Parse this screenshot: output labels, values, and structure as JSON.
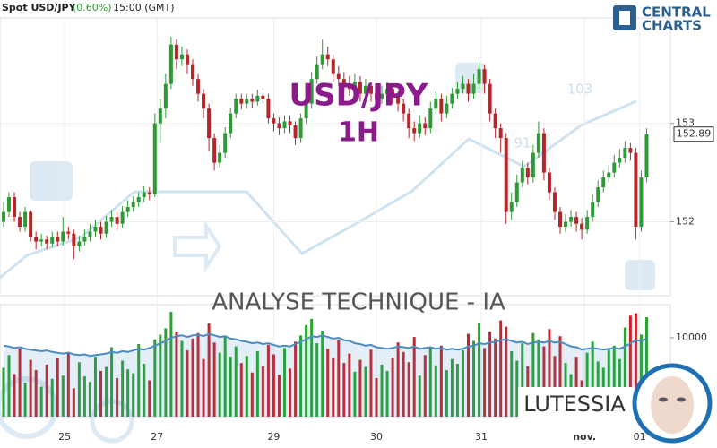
{
  "page": {
    "title": "Spot USD/JPY",
    "change": "(0.60%)",
    "time": "15:00 (GMT)",
    "logo_top": "CENTRAL",
    "logo_bottom": "CHARTS",
    "overlay_symbol": "USD/JPY",
    "overlay_timeframe": "1H",
    "banner": "ANALYSE TECHNIQUE - IA",
    "brand": "LUTESSIA",
    "watermark_a": "103",
    "watermark_b": "91"
  },
  "chart_data": [
    {
      "type": "candlestick",
      "up_color": "#2e9a36",
      "down_color": "#b5262a",
      "grid": true,
      "xlim": [
        -0.66,
        123.4
      ],
      "ylim": [
        151.25,
        154.07
      ],
      "yticks": [
        152,
        153
      ],
      "xticks": [
        {
          "value": 11.3,
          "label": "25"
        },
        {
          "value": 28.4,
          "label": "27"
        },
        {
          "value": 50.0,
          "label": "29"
        },
        {
          "value": 69.0,
          "label": "30"
        },
        {
          "value": 88.4,
          "label": "31"
        },
        {
          "value": 107.5,
          "label": "nov."
        },
        {
          "value": 117.7,
          "label": "01"
        }
      ],
      "open": [
        152.0,
        152.1,
        152.25,
        152.05,
        151.95,
        152.1,
        151.85,
        151.8,
        151.82,
        151.78,
        151.85,
        151.8,
        151.9,
        151.88,
        151.75,
        151.8,
        151.85,
        151.9,
        151.95,
        151.88,
        152.0,
        152.05,
        151.98,
        152.1,
        152.15,
        152.2,
        152.25,
        152.3,
        152.28,
        153.0,
        153.15,
        153.4,
        153.8,
        153.65,
        153.7,
        153.6,
        153.45,
        153.3,
        153.15,
        152.85,
        152.6,
        152.7,
        152.9,
        153.1,
        153.25,
        153.2,
        153.25,
        153.22,
        153.28,
        153.25,
        153.05,
        153.0,
        152.95,
        153.02,
        152.98,
        152.85,
        153.05,
        153.2,
        153.45,
        153.6,
        153.7,
        153.65,
        153.5,
        153.45,
        153.4,
        153.35,
        153.42,
        153.3,
        153.38,
        153.3,
        153.25,
        153.3,
        153.35,
        153.28,
        153.2,
        153.1,
        152.95,
        152.9,
        153.0,
        152.95,
        153.15,
        153.25,
        153.1,
        153.2,
        153.3,
        153.35,
        153.4,
        153.3,
        153.4,
        153.55,
        153.4,
        153.1,
        152.95,
        152.85,
        152.1,
        152.2,
        152.4,
        152.55,
        152.45,
        152.7,
        152.9,
        152.5,
        152.3,
        152.1,
        151.95,
        152.0,
        152.05,
        151.98,
        151.92,
        152.05,
        152.2,
        152.35,
        152.45,
        152.5,
        152.6,
        152.65,
        152.75,
        152.7,
        151.95,
        152.45
      ],
      "high": [
        152.2,
        152.3,
        152.3,
        152.1,
        152.15,
        152.12,
        151.9,
        151.88,
        151.86,
        151.9,
        151.9,
        152.05,
        151.95,
        151.92,
        151.86,
        151.92,
        151.98,
        152.02,
        152.0,
        152.06,
        152.12,
        152.1,
        152.16,
        152.22,
        152.26,
        152.3,
        152.36,
        152.35,
        153.1,
        153.25,
        153.5,
        153.88,
        153.85,
        153.78,
        153.75,
        153.65,
        153.5,
        153.35,
        153.2,
        152.9,
        152.78,
        152.96,
        153.16,
        153.3,
        153.3,
        153.3,
        153.3,
        153.34,
        153.32,
        153.3,
        153.1,
        153.06,
        153.08,
        153.08,
        153.02,
        153.1,
        153.28,
        153.52,
        153.68,
        153.85,
        153.78,
        153.7,
        153.58,
        153.52,
        153.48,
        153.5,
        153.48,
        153.45,
        153.42,
        153.36,
        153.38,
        153.42,
        153.4,
        153.32,
        153.25,
        153.15,
        153.02,
        153.08,
        153.06,
        153.22,
        153.32,
        153.3,
        153.28,
        153.36,
        153.42,
        153.48,
        153.45,
        153.5,
        153.62,
        153.6,
        153.45,
        153.15,
        153.0,
        152.9,
        152.3,
        152.48,
        152.62,
        152.6,
        152.78,
        153.02,
        152.95,
        152.55,
        152.35,
        152.15,
        152.08,
        152.12,
        152.1,
        152.04,
        152.12,
        152.28,
        152.42,
        152.52,
        152.58,
        152.68,
        152.74,
        152.82,
        152.8,
        152.75,
        152.52,
        152.95
      ],
      "low": [
        151.95,
        152.05,
        152.0,
        151.9,
        151.9,
        151.8,
        151.72,
        151.75,
        151.72,
        151.74,
        151.75,
        151.76,
        151.82,
        151.62,
        151.7,
        151.76,
        151.8,
        151.85,
        151.82,
        151.84,
        151.95,
        151.92,
        151.94,
        152.05,
        152.1,
        152.15,
        152.2,
        152.22,
        152.25,
        152.8,
        153.05,
        153.35,
        153.55,
        153.58,
        153.5,
        153.38,
        153.22,
        153.05,
        152.72,
        152.52,
        152.55,
        152.65,
        152.85,
        153.05,
        153.14,
        153.15,
        153.16,
        153.18,
        153.2,
        153.0,
        152.92,
        152.88,
        152.9,
        152.9,
        152.78,
        152.8,
        153.0,
        153.15,
        153.4,
        153.55,
        153.58,
        153.42,
        153.38,
        153.32,
        153.28,
        153.3,
        153.22,
        153.25,
        153.22,
        153.18,
        153.2,
        153.25,
        153.2,
        153.12,
        153.02,
        152.85,
        152.82,
        152.85,
        152.88,
        152.9,
        153.1,
        153.02,
        153.05,
        153.15,
        153.25,
        153.3,
        153.22,
        153.25,
        153.35,
        153.3,
        153.02,
        152.85,
        152.7,
        151.98,
        152.02,
        152.15,
        152.35,
        152.38,
        152.4,
        152.65,
        152.42,
        152.22,
        152.02,
        151.88,
        151.9,
        151.95,
        151.9,
        151.82,
        151.88,
        152.0,
        152.15,
        152.3,
        152.4,
        152.45,
        152.55,
        152.6,
        152.62,
        151.82,
        151.9,
        152.4
      ],
      "close": [
        152.1,
        152.25,
        152.05,
        151.95,
        152.1,
        151.85,
        151.8,
        151.82,
        151.78,
        151.85,
        151.8,
        151.9,
        151.88,
        151.75,
        151.8,
        151.85,
        151.9,
        151.95,
        151.88,
        152.0,
        152.05,
        151.98,
        152.1,
        152.15,
        152.2,
        152.25,
        152.3,
        152.28,
        153.0,
        153.15,
        153.4,
        153.8,
        153.65,
        153.7,
        153.6,
        153.45,
        153.3,
        153.15,
        152.85,
        152.6,
        152.7,
        152.9,
        153.1,
        153.25,
        153.2,
        153.25,
        153.22,
        153.28,
        153.25,
        153.05,
        153.0,
        152.95,
        153.02,
        152.98,
        152.85,
        153.05,
        153.2,
        153.45,
        153.6,
        153.7,
        153.65,
        153.5,
        153.45,
        153.4,
        153.35,
        153.42,
        153.3,
        153.38,
        153.3,
        153.25,
        153.3,
        153.35,
        153.28,
        153.2,
        153.1,
        152.95,
        152.9,
        153.0,
        152.95,
        153.15,
        153.25,
        153.1,
        153.2,
        153.3,
        153.35,
        153.4,
        153.3,
        153.4,
        153.55,
        153.4,
        153.1,
        152.95,
        152.85,
        152.1,
        152.2,
        152.4,
        152.55,
        152.45,
        152.7,
        152.9,
        152.5,
        152.3,
        152.1,
        151.95,
        152.0,
        152.05,
        151.98,
        151.92,
        152.05,
        152.2,
        152.35,
        152.45,
        152.5,
        152.6,
        152.65,
        152.75,
        152.7,
        151.95,
        152.45,
        152.89
      ]
    },
    {
      "type": "bar",
      "up_color": "#27a52d",
      "down_color": "#c8232a",
      "ylim": [
        0,
        14200
      ],
      "yticks": [
        10000
      ],
      "values": [
        6200,
        7800,
        5400,
        8600,
        4300,
        7200,
        5900,
        3800,
        6600,
        4800,
        7400,
        5200,
        8200,
        3600,
        6900,
        5100,
        4400,
        7600,
        5800,
        6300,
        8800,
        4900,
        7100,
        6000,
        5500,
        9200,
        6700,
        4600,
        9800,
        10400,
        11200,
        13300,
        10800,
        9600,
        8400,
        9900,
        10600,
        7300,
        11800,
        9400,
        8100,
        10200,
        7600,
        8900,
        6800,
        7700,
        5600,
        8300,
        6400,
        9100,
        7900,
        5300,
        8700,
        6100,
        9500,
        10300,
        11600,
        12400,
        9300,
        10900,
        8600,
        7400,
        9700,
        6800,
        8000,
        5700,
        7200,
        6300,
        8500,
        4900,
        6600,
        5800,
        7500,
        9400,
        8200,
        6900,
        10100,
        5200,
        7800,
        8800,
        6500,
        9000,
        5900,
        7300,
        6700,
        8400,
        10500,
        9600,
        11900,
        8700,
        10800,
        9900,
        12200,
        11400,
        8300,
        7100,
        9300,
        6400,
        10600,
        9800,
        8900,
        11100,
        7700,
        10200,
        6800,
        5400,
        7600,
        4600,
        8100,
        9500,
        7000,
        6200,
        8600,
        9000,
        7300,
        11300,
        12800,
        13100,
        10400,
        12600
      ],
      "line": {
        "color": "#4a8cc4",
        "values": [
          9000,
          8900,
          8700,
          8800,
          8600,
          8500,
          8400,
          8300,
          8400,
          8200,
          8100,
          8000,
          8100,
          7900,
          7800,
          7900,
          7700,
          7800,
          7900,
          8000,
          8200,
          8100,
          8300,
          8200,
          8400,
          8600,
          8500,
          8700,
          9000,
          9300,
          9600,
          10000,
          10200,
          10300,
          10100,
          10300,
          10400,
          10200,
          10500,
          10300,
          10100,
          10200,
          9900,
          9800,
          9600,
          9500,
          9300,
          9400,
          9200,
          9300,
          9100,
          8900,
          9000,
          8900,
          9200,
          9500,
          9800,
          10200,
          10100,
          10300,
          10100,
          9900,
          10000,
          9700,
          9600,
          9300,
          9200,
          9000,
          9100,
          8800,
          8700,
          8600,
          8700,
          8900,
          8800,
          8700,
          8900,
          8600,
          8700,
          8800,
          8600,
          8700,
          8500,
          8600,
          8500,
          8600,
          8900,
          9000,
          9300,
          9200,
          9400,
          9500,
          9700,
          9800,
          9600,
          9400,
          9500,
          9200,
          9400,
          9500,
          9400,
          9600,
          9400,
          9500,
          9200,
          8900,
          8800,
          8500,
          8600,
          8700,
          8600,
          8500,
          8600,
          8700,
          8600,
          8900,
          9300,
          9700,
          9600,
          9900
        ]
      }
    }
  ]
}
